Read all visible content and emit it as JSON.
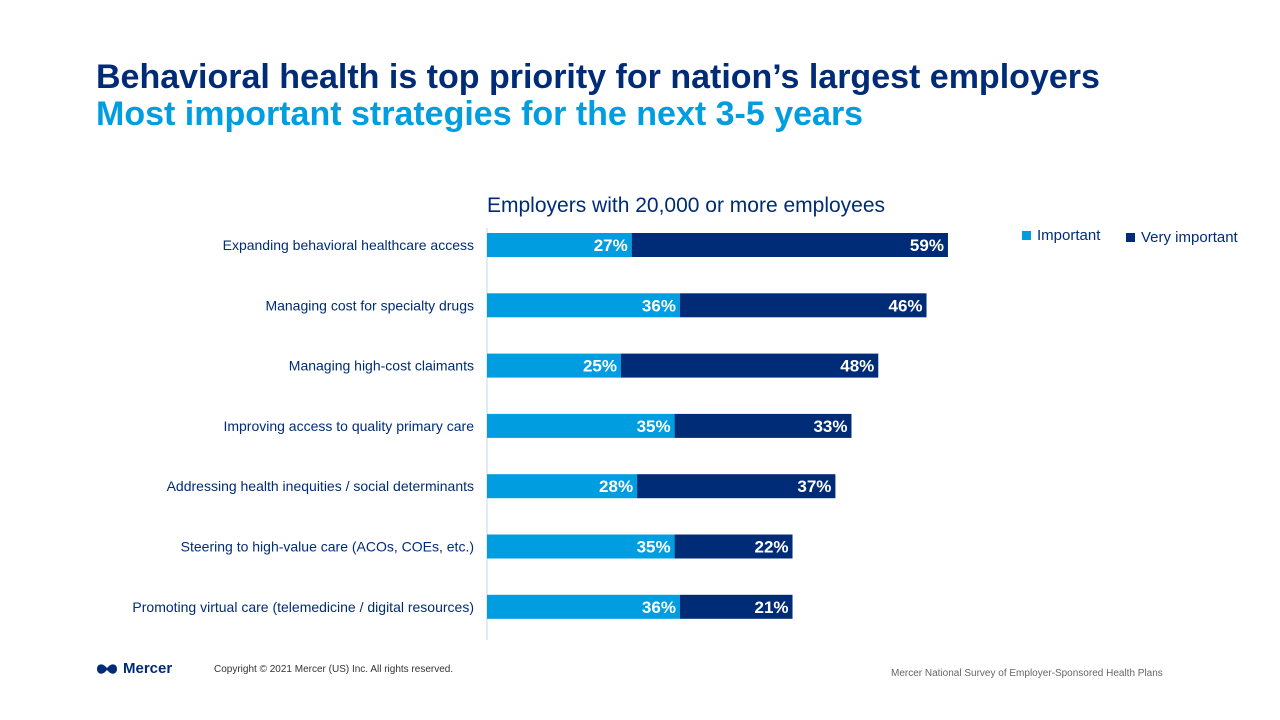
{
  "slide": {
    "title": "Behavioral health is top priority for nation’s largest employers",
    "subtitle": "Most important strategies for the next 3-5 years",
    "brand": "Mercer",
    "copyright": "Copyright © 2021 Mercer (US) Inc. All rights reserved.",
    "source": "Mercer National Survey of Employer-Sponsored Health Plans"
  },
  "colors": {
    "important": "#009de0",
    "very_important": "#002c77",
    "title": "#002c77",
    "subtitle": "#009de0"
  },
  "chart_data": {
    "type": "bar",
    "orientation": "horizontal",
    "stacked": true,
    "title": "Employers with 20,000 or more employees",
    "legend_position": "top-right",
    "grid": false,
    "xlim": [
      0,
      100
    ],
    "categories": [
      "Expanding behavioral healthcare access",
      "Managing cost for specialty drugs",
      "Managing high-cost claimants",
      "Improving access to quality primary care",
      "Addressing health inequities / social determinants",
      "Steering to high-value care (ACOs, COEs, etc.)",
      "Promoting virtual care (telemedicine / digital resources)"
    ],
    "series": [
      {
        "name": "Important",
        "values": [
          27,
          36,
          25,
          35,
          28,
          35,
          36
        ],
        "labels": [
          "27%",
          "36%",
          "25%",
          "35%",
          "28%",
          "35%",
          "36%"
        ]
      },
      {
        "name": "Very important",
        "values": [
          59,
          46,
          48,
          33,
          37,
          22,
          21
        ],
        "labels": [
          "59%",
          "46%",
          "48%",
          "33%",
          "37%",
          "22%",
          "21%"
        ]
      }
    ]
  }
}
